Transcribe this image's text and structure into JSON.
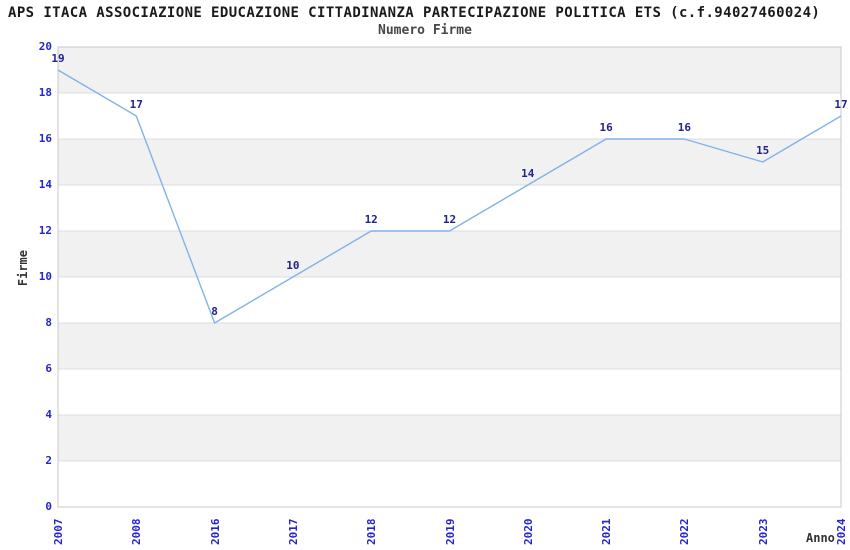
{
  "header": {
    "title": "APS ITACA ASSOCIAZIONE EDUCAZIONE CITTADINANZA PARTECIPAZIONE POLITICA ETS (c.f.94027460024)",
    "subtitle": "Numero Firme"
  },
  "chart_data": {
    "type": "line",
    "title": "Numero Firme",
    "categories": [
      "2007",
      "2008",
      "2016",
      "2017",
      "2018",
      "2019",
      "2020",
      "2021",
      "2022",
      "2023",
      "2024"
    ],
    "values": [
      19,
      17,
      8,
      10,
      12,
      12,
      14,
      16,
      16,
      15,
      17
    ],
    "xlabel": "Anno",
    "ylabel": "Firme",
    "ylim": [
      0,
      20
    ],
    "ytick_step": 2,
    "yticks": [
      0,
      2,
      4,
      6,
      8,
      10,
      12,
      14,
      16,
      18,
      20
    ],
    "grid": "horizontal-bands-alternating",
    "legend": "none",
    "colors": {
      "line": "#80b3e8",
      "data_label": "#22228c",
      "tick_label": "#2525cc",
      "band_gray": "#f1f1f1",
      "band_white": "#ffffff",
      "grid_line": "#dddddd",
      "plot_border": "#c8c8c8",
      "title": "#1a1a1a",
      "subtitle": "#474747",
      "axis_label": "#333333"
    }
  }
}
